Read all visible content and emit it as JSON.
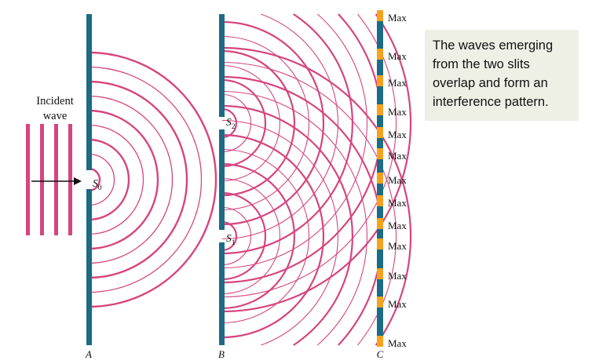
{
  "diagram": {
    "incident_label_line1": "Incident",
    "incident_label_line2": "wave",
    "screens": [
      "A",
      "B",
      "C"
    ],
    "slit_labels": {
      "s0": {
        "base": "S",
        "sub": "0"
      },
      "s2": {
        "base": "S",
        "sub": "2"
      },
      "s1": {
        "base": "S",
        "sub": "1"
      }
    },
    "max_labels": [
      "Max",
      "Max",
      "Max",
      "Max",
      "Max",
      "Max",
      "Max",
      "Max",
      "Max",
      "Max",
      "Max",
      "Max",
      "Max"
    ],
    "caption": "The waves emerging from the two slits overlap and form an interference pattern.",
    "colors": {
      "wave": "#d6457f",
      "barrier": "#1d6b84",
      "screen_max": "#f6a21e",
      "screen_min": "#1d6b84",
      "caption_bg": "#eef0e6"
    }
  }
}
